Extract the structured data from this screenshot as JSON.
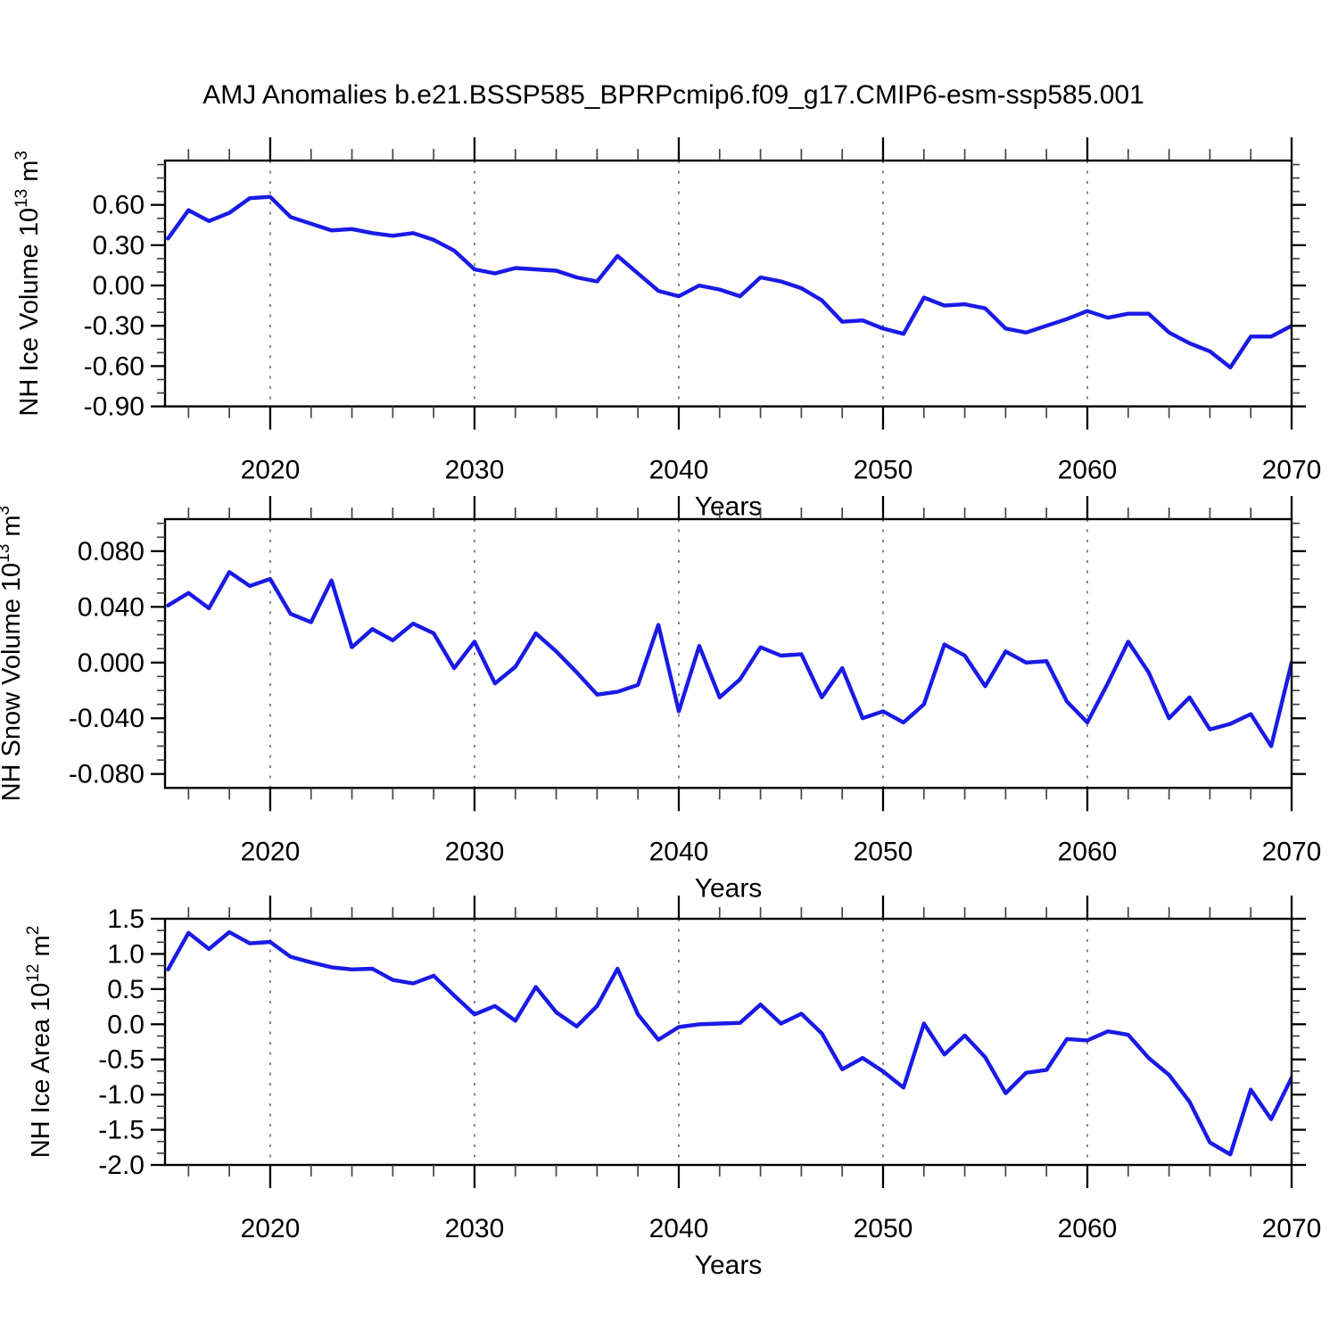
{
  "title": "AMJ Anomalies b.e21.BSSP585_BPRPcmip6.f09_g17.CMIP6-esm-ssp585.001",
  "colors": {
    "line": "#1a1ae6",
    "axis": "#000000",
    "grid": "#7a7a7a",
    "minor_tick": "#444444"
  },
  "chart_data": [
    {
      "type": "line",
      "panel": "nh-ice-volume",
      "ylabel": "NH Ice Volume 10^{13} m^{3}",
      "xlabel": "Years",
      "ylim": [
        -0.9,
        0.93
      ],
      "xlim_years": [
        2015,
        2070
      ],
      "grid_years": [
        2020,
        2030,
        2040,
        2050,
        2060
      ],
      "xticks": [
        2020,
        2030,
        2040,
        2050,
        2060,
        2070
      ],
      "xtick_labels": [
        "2020",
        "2030",
        "2040",
        "2050",
        "2060",
        "2070"
      ],
      "yticks": [
        0.6,
        0.3,
        0.0,
        -0.3,
        -0.6,
        -0.9
      ],
      "ytick_labels": [
        "0.60",
        "0.30",
        "0.00",
        "-0.30",
        "-0.60",
        "-0.90"
      ],
      "x": [
        2015,
        2016,
        2017,
        2018,
        2019,
        2020,
        2021,
        2022,
        2023,
        2024,
        2025,
        2026,
        2027,
        2028,
        2029,
        2030,
        2031,
        2032,
        2033,
        2034,
        2035,
        2036,
        2037,
        2038,
        2039,
        2040,
        2041,
        2042,
        2043,
        2044,
        2045,
        2046,
        2047,
        2048,
        2049,
        2050,
        2051,
        2052,
        2053,
        2054,
        2055,
        2056,
        2057,
        2058,
        2059,
        2060,
        2061,
        2062,
        2063,
        2064,
        2065,
        2066,
        2067,
        2068,
        2069,
        2070
      ],
      "values": [
        0.35,
        0.56,
        0.48,
        0.54,
        0.65,
        0.66,
        0.51,
        0.46,
        0.41,
        0.42,
        0.39,
        0.37,
        0.39,
        0.34,
        0.26,
        0.12,
        0.09,
        0.13,
        0.12,
        0.11,
        0.06,
        0.03,
        0.22,
        0.09,
        -0.04,
        -0.08,
        0.0,
        -0.03,
        -0.08,
        0.06,
        0.03,
        -0.02,
        -0.11,
        -0.27,
        -0.26,
        -0.32,
        -0.36,
        -0.09,
        -0.15,
        -0.14,
        -0.17,
        -0.32,
        -0.35,
        -0.3,
        -0.25,
        -0.19,
        -0.24,
        -0.21,
        -0.21,
        -0.35,
        -0.43,
        -0.49,
        -0.61,
        -0.38,
        -0.38,
        -0.3
      ]
    },
    {
      "type": "line",
      "panel": "nh-snow-volume",
      "ylabel": "NH Snow Volume 10^{13} m^{3}",
      "xlabel": "Years",
      "ylim": [
        -0.09,
        0.103
      ],
      "xlim_years": [
        2015,
        2070
      ],
      "grid_years": [
        2020,
        2030,
        2040,
        2050,
        2060
      ],
      "xticks": [
        2020,
        2030,
        2040,
        2050,
        2060,
        2070
      ],
      "xtick_labels": [
        "2020",
        "2030",
        "2040",
        "2050",
        "2060",
        "2070"
      ],
      "yticks": [
        0.08,
        0.04,
        0.0,
        -0.04,
        -0.08
      ],
      "ytick_labels": [
        "0.080",
        "0.040",
        "0.000",
        "-0.040",
        "-0.080"
      ],
      "x": [
        2015,
        2016,
        2017,
        2018,
        2019,
        2020,
        2021,
        2022,
        2023,
        2024,
        2025,
        2026,
        2027,
        2028,
        2029,
        2030,
        2031,
        2032,
        2033,
        2034,
        2035,
        2036,
        2037,
        2038,
        2039,
        2040,
        2041,
        2042,
        2043,
        2044,
        2045,
        2046,
        2047,
        2048,
        2049,
        2050,
        2051,
        2052,
        2053,
        2054,
        2055,
        2056,
        2057,
        2058,
        2059,
        2060,
        2061,
        2062,
        2063,
        2064,
        2065,
        2066,
        2067,
        2068,
        2069,
        2070
      ],
      "values": [
        0.041,
        0.05,
        0.039,
        0.065,
        0.055,
        0.06,
        0.035,
        0.029,
        0.059,
        0.011,
        0.024,
        0.016,
        0.028,
        0.021,
        -0.004,
        0.015,
        -0.015,
        -0.003,
        0.021,
        0.008,
        -0.007,
        -0.023,
        -0.021,
        -0.016,
        0.027,
        -0.035,
        0.012,
        -0.025,
        -0.012,
        0.011,
        0.005,
        0.006,
        -0.025,
        -0.004,
        -0.04,
        -0.035,
        -0.043,
        -0.03,
        0.013,
        0.005,
        -0.017,
        0.008,
        0.0,
        0.001,
        -0.028,
        -0.043,
        -0.015,
        0.015,
        -0.007,
        -0.04,
        -0.025,
        -0.048,
        -0.044,
        -0.037,
        -0.06,
        0.0
      ]
    },
    {
      "type": "line",
      "panel": "nh-ice-area",
      "ylabel": "NH Ice Area 10^{12} m^{2}",
      "xlabel": "Years",
      "ylim": [
        -2.0,
        1.5
      ],
      "xlim_years": [
        2015,
        2070
      ],
      "grid_years": [
        2020,
        2030,
        2040,
        2050,
        2060
      ],
      "xticks": [
        2020,
        2030,
        2040,
        2050,
        2060,
        2070
      ],
      "xtick_labels": [
        "2020",
        "2030",
        "2040",
        "2050",
        "2060",
        "2070"
      ],
      "yticks": [
        1.5,
        1.0,
        0.5,
        0.0,
        -0.5,
        -1.0,
        -1.5,
        -2.0
      ],
      "ytick_labels": [
        "1.5",
        "1.0",
        "0.5",
        "0.0",
        "-0.5",
        "-1.0",
        "-1.5",
        "-2.0"
      ],
      "x": [
        2015,
        2016,
        2017,
        2018,
        2019,
        2020,
        2021,
        2022,
        2023,
        2024,
        2025,
        2026,
        2027,
        2028,
        2029,
        2030,
        2031,
        2032,
        2033,
        2034,
        2035,
        2036,
        2037,
        2038,
        2039,
        2040,
        2041,
        2042,
        2043,
        2044,
        2045,
        2046,
        2047,
        2048,
        2049,
        2050,
        2051,
        2052,
        2053,
        2054,
        2055,
        2056,
        2057,
        2058,
        2059,
        2060,
        2061,
        2062,
        2063,
        2064,
        2065,
        2066,
        2067,
        2068,
        2069,
        2070
      ],
      "values": [
        0.78,
        1.3,
        1.07,
        1.31,
        1.15,
        1.17,
        0.96,
        0.88,
        0.81,
        0.78,
        0.79,
        0.63,
        0.58,
        0.69,
        0.41,
        0.14,
        0.26,
        0.05,
        0.53,
        0.17,
        -0.03,
        0.26,
        0.79,
        0.14,
        -0.22,
        -0.04,
        0.0,
        0.01,
        0.02,
        0.28,
        0.01,
        0.15,
        -0.13,
        -0.64,
        -0.48,
        -0.67,
        -0.9,
        0.01,
        -0.43,
        -0.16,
        -0.47,
        -0.98,
        -0.69,
        -0.65,
        -0.21,
        -0.23,
        -0.1,
        -0.15,
        -0.48,
        -0.72,
        -1.1,
        -1.68,
        -1.85,
        -0.93,
        -1.35,
        -0.76
      ]
    }
  ]
}
